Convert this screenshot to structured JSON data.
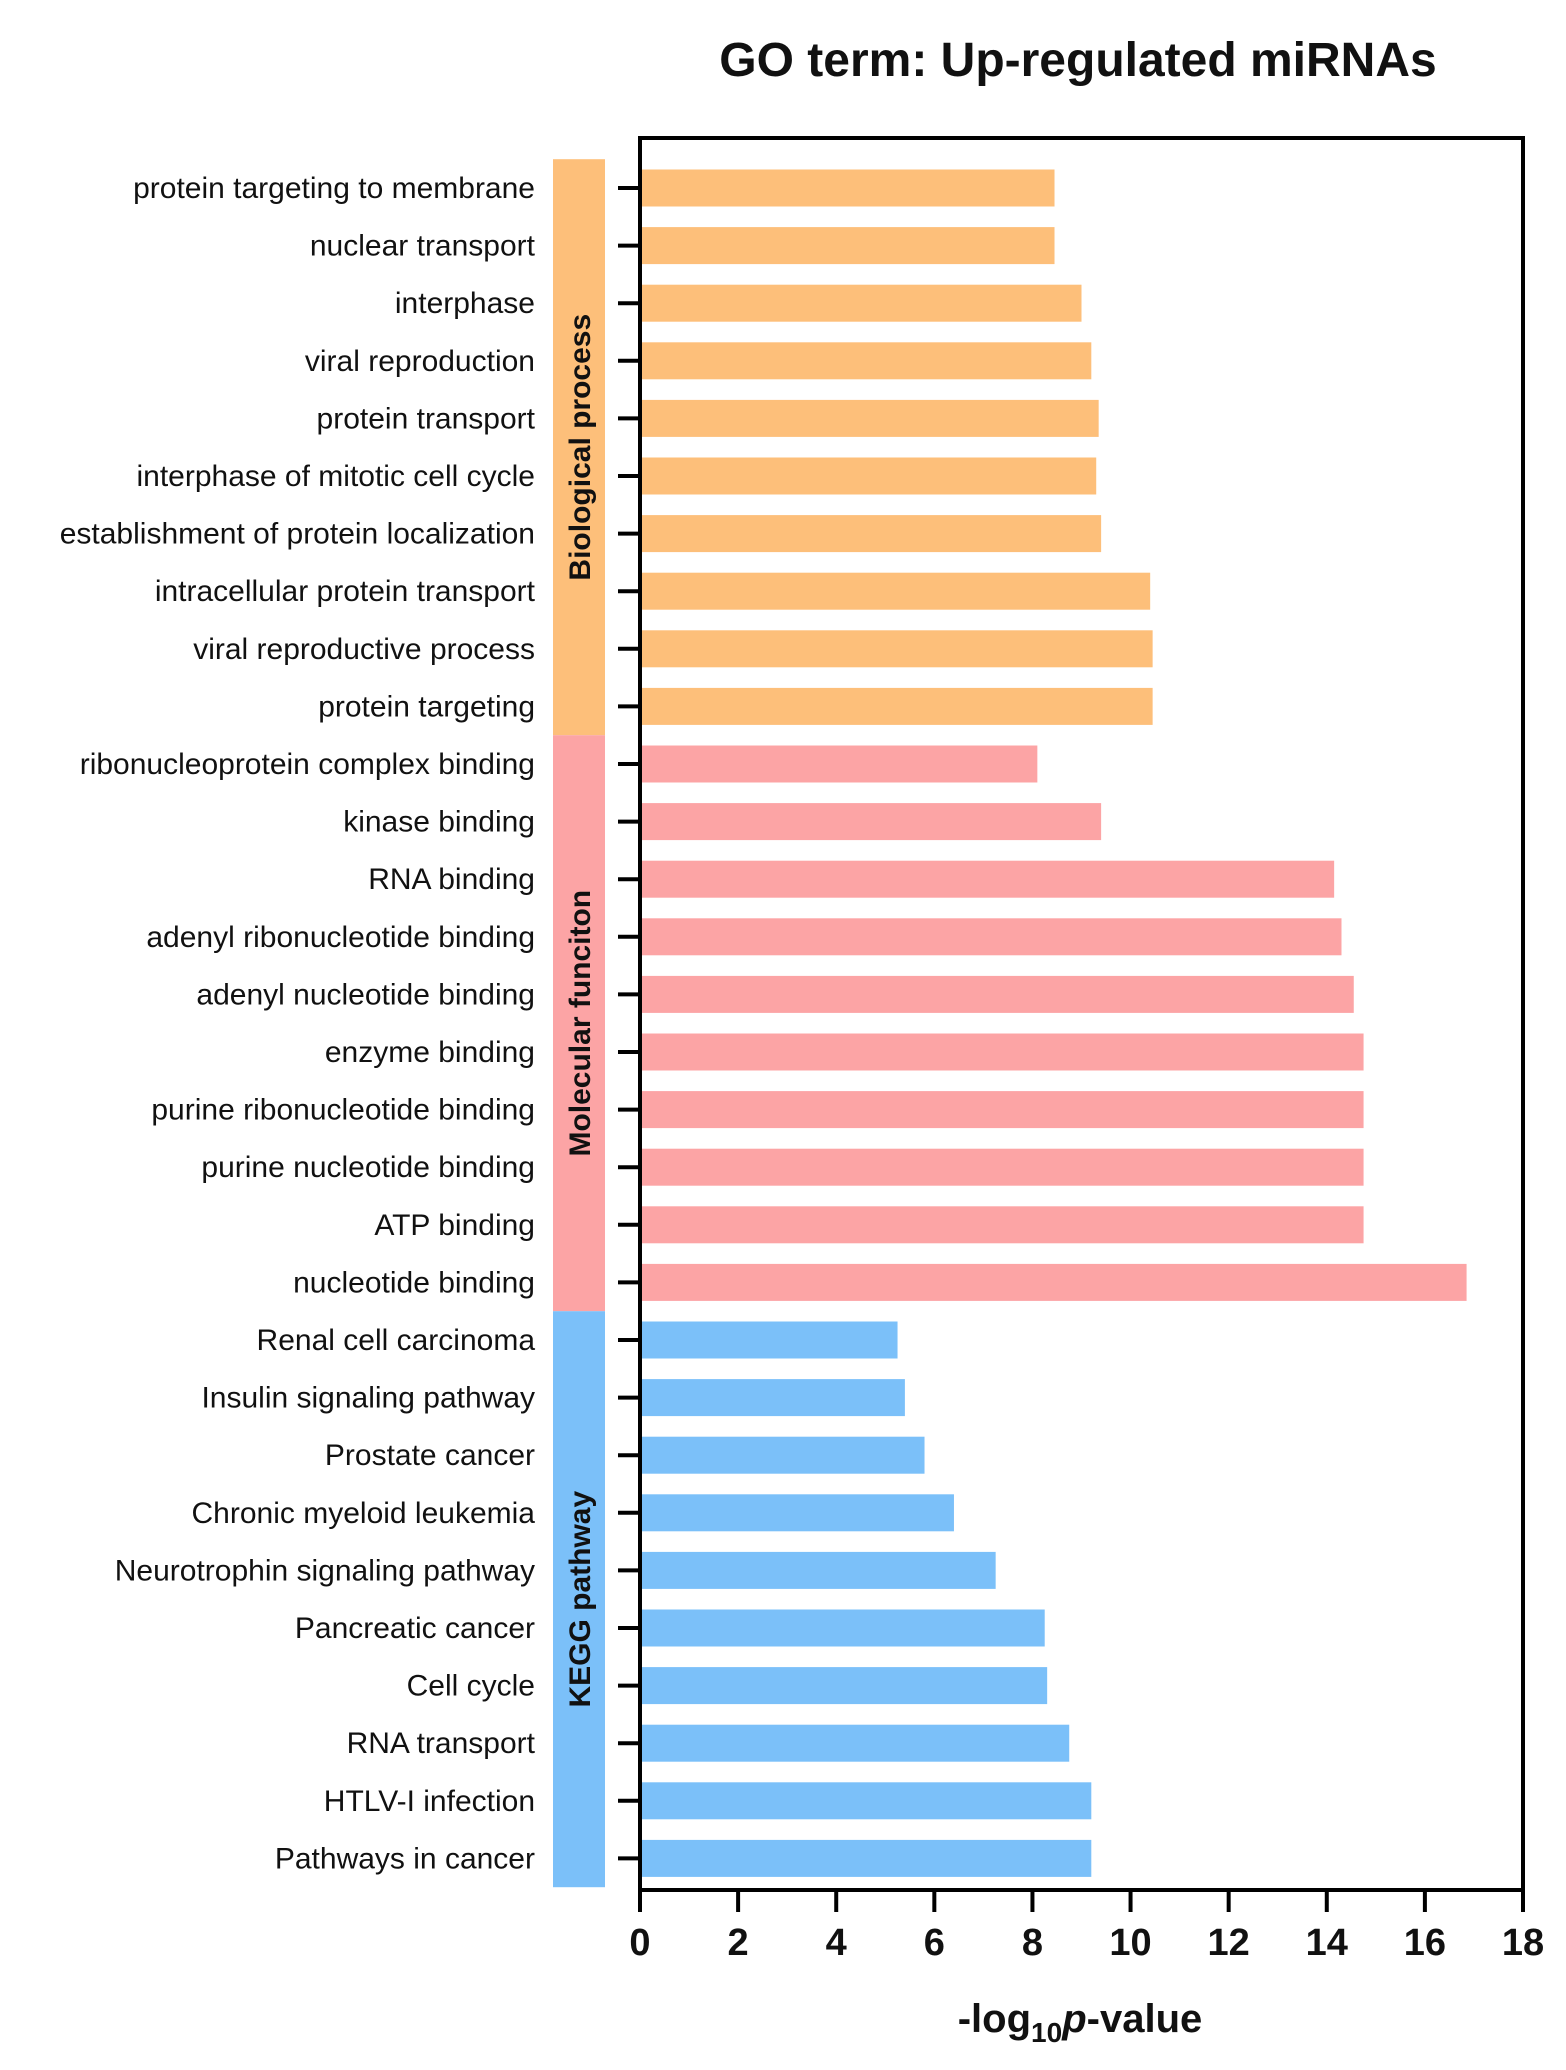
{
  "chart_data": {
    "type": "bar",
    "orientation": "horizontal",
    "title": "GO term: Up-regulated miRNAs",
    "xlabel": "-log10p-value",
    "xlabel_parts": {
      "prefix": "-log",
      "subscript": "10",
      "italic": "p",
      "suffix": "-value"
    },
    "ylabel": "",
    "xlim": [
      0,
      18
    ],
    "xticks": [
      "0",
      "2",
      "4",
      "6",
      "8",
      "10",
      "12",
      "14",
      "16",
      "18"
    ],
    "grid": false,
    "groups": [
      {
        "name": "Biological process",
        "color": "#FDBF7A",
        "bar_color": "#FDBF7A",
        "categories": [
          "protein targeting to membrane",
          "nuclear transport",
          "interphase",
          "viral reproduction",
          "protein transport",
          "interphase of mitotic cell cycle",
          "establishment of protein localization",
          "intracellular protein transport",
          "viral reproductive process",
          "protein targeting"
        ],
        "values": [
          8.45,
          8.45,
          9.0,
          9.2,
          9.35,
          9.3,
          9.4,
          10.4,
          10.45,
          10.45
        ]
      },
      {
        "name": "Molecular funciton",
        "color": "#FCA4A5",
        "bar_color": "#FCA4A5",
        "categories": [
          "ribonucleoprotein complex binding",
          "kinase binding",
          "RNA binding",
          "adenyl ribonucleotide binding",
          "adenyl nucleotide binding",
          "enzyme binding",
          "purine ribonucleotide binding",
          "purine nucleotide binding",
          "ATP binding",
          "nucleotide binding"
        ],
        "values": [
          8.1,
          9.4,
          14.15,
          14.3,
          14.55,
          14.75,
          14.75,
          14.75,
          14.75,
          16.85
        ]
      },
      {
        "name": "KEGG pathway",
        "color": "#7BC0F9",
        "bar_color": "#7BC0F9",
        "categories": [
          "Renal cell carcinoma",
          "Insulin signaling pathway",
          "Prostate cancer",
          "Chronic myeloid leukemia",
          "Neurotrophin signaling pathway",
          "Pancreatic cancer",
          "Cell cycle",
          "RNA transport",
          "HTLV-I infection",
          "Pathways in cancer"
        ],
        "values": [
          5.25,
          5.4,
          5.8,
          6.4,
          7.25,
          8.25,
          8.3,
          8.75,
          9.2,
          9.2
        ]
      }
    ]
  }
}
